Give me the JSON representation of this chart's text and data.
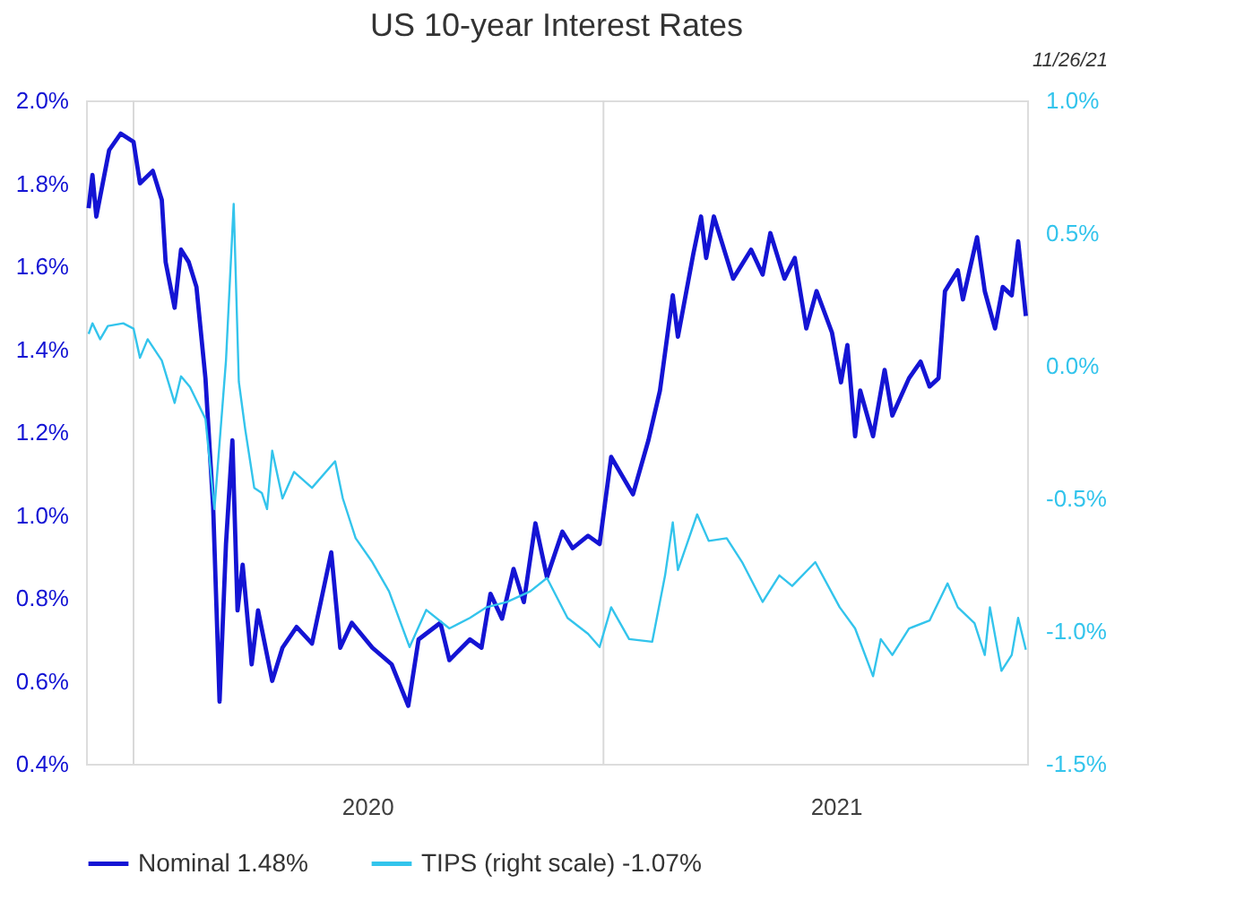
{
  "chart_data": {
    "type": "line",
    "title": "US 10-year Interest Rates",
    "annotations": [
      "11/26/21"
    ],
    "xlim": [
      "2019-11-25",
      "2021-11-27"
    ],
    "xticks": [
      {
        "value": "2020-07-01",
        "label": "2020"
      },
      {
        "value": "2021-07-01",
        "label": "2021"
      }
    ],
    "ylim": [
      0.4,
      2.0
    ],
    "yticks": [
      {
        "value": 0.4,
        "label": "0.4%"
      },
      {
        "value": 0.6,
        "label": "0.6%"
      },
      {
        "value": 0.8,
        "label": "0.8%"
      },
      {
        "value": 1.0,
        "label": "1.0%"
      },
      {
        "value": 1.2,
        "label": "1.2%"
      },
      {
        "value": 1.4,
        "label": "1.4%"
      },
      {
        "value": 1.6,
        "label": "1.6%"
      },
      {
        "value": 1.8,
        "label": "1.8%"
      },
      {
        "value": 2.0,
        "label": "2.0%"
      }
    ],
    "y2lim": [
      -1.5,
      1.0
    ],
    "y2ticks": [
      {
        "value": -1.5,
        "label": "-1.5%"
      },
      {
        "value": -1.0,
        "label": "-1.0%"
      },
      {
        "value": -0.5,
        "label": "-0.5%"
      },
      {
        "value": 0.0,
        "label": "0.0%"
      },
      {
        "value": 0.5,
        "label": "0.5%"
      },
      {
        "value": 1.0,
        "label": "1.0%"
      }
    ],
    "ref_lines": [
      {
        "axis": "x",
        "value": "2020-01-01",
        "color": "#d9d9d9"
      },
      {
        "axis": "x",
        "value": "2021-01-01",
        "color": "#d9d9d9"
      }
    ],
    "grid": false,
    "legend": "bottom",
    "line_style": "solid",
    "marker": "none",
    "series": [
      {
        "name": "Nominal 1.48%",
        "color": "#1414d4",
        "axis": "y",
        "x": [
          "2019-11-27",
          "2019-11-30",
          "2019-12-03",
          "2019-12-13",
          "2019-12-22",
          "2020-01-01",
          "2020-01-06",
          "2020-01-16",
          "2020-01-23",
          "2020-01-26",
          "2020-02-02",
          "2020-02-07",
          "2020-02-13",
          "2020-02-19",
          "2020-02-26",
          "2020-03-03",
          "2020-03-08",
          "2020-03-13",
          "2020-03-18",
          "2020-03-22",
          "2020-03-26",
          "2020-04-02",
          "2020-04-07",
          "2020-04-18",
          "2020-04-26",
          "2020-05-07",
          "2020-05-19",
          "2020-06-03",
          "2020-06-10",
          "2020-06-19",
          "2020-07-05",
          "2020-07-20",
          "2020-08-02",
          "2020-08-10",
          "2020-08-27",
          "2020-09-03",
          "2020-09-19",
          "2020-09-28",
          "2020-10-05",
          "2020-10-14",
          "2020-10-23",
          "2020-10-31",
          "2020-11-09",
          "2020-11-18",
          "2020-11-30",
          "2020-12-08",
          "2020-12-20",
          "2020-12-29",
          "2021-01-07",
          "2021-01-24",
          "2021-02-05",
          "2021-02-14",
          "2021-02-24",
          "2021-02-28",
          "2021-03-12",
          "2021-03-18",
          "2021-03-22",
          "2021-03-28",
          "2021-04-12",
          "2021-04-26",
          "2021-05-05",
          "2021-05-11",
          "2021-05-22",
          "2021-05-30",
          "2021-06-08",
          "2021-06-16",
          "2021-06-28",
          "2021-07-05",
          "2021-07-10",
          "2021-07-16",
          "2021-07-20",
          "2021-07-30",
          "2021-08-08",
          "2021-08-14",
          "2021-08-27",
          "2021-09-05",
          "2021-09-12",
          "2021-09-19",
          "2021-09-24",
          "2021-10-04",
          "2021-10-08",
          "2021-10-19",
          "2021-10-25",
          "2021-11-02",
          "2021-11-08",
          "2021-11-15",
          "2021-11-20",
          "2021-11-26"
        ],
        "values": [
          1.74,
          1.82,
          1.72,
          1.88,
          1.92,
          1.9,
          1.8,
          1.83,
          1.76,
          1.61,
          1.5,
          1.64,
          1.61,
          1.55,
          1.33,
          1.02,
          0.55,
          0.93,
          1.18,
          0.77,
          0.88,
          0.64,
          0.77,
          0.6,
          0.68,
          0.73,
          0.69,
          0.91,
          0.68,
          0.74,
          0.68,
          0.64,
          0.54,
          0.7,
          0.74,
          0.65,
          0.7,
          0.68,
          0.81,
          0.75,
          0.87,
          0.79,
          0.98,
          0.85,
          0.96,
          0.92,
          0.95,
          0.93,
          1.14,
          1.05,
          1.18,
          1.3,
          1.53,
          1.43,
          1.63,
          1.72,
          1.62,
          1.72,
          1.57,
          1.64,
          1.58,
          1.68,
          1.57,
          1.62,
          1.45,
          1.54,
          1.44,
          1.32,
          1.41,
          1.19,
          1.3,
          1.19,
          1.35,
          1.24,
          1.33,
          1.37,
          1.31,
          1.33,
          1.54,
          1.59,
          1.52,
          1.67,
          1.54,
          1.45,
          1.55,
          1.53,
          1.66,
          1.48
        ]
      },
      {
        "name": "TIPS (right scale) -1.07%",
        "color": "#33c4ec",
        "axis": "y2",
        "x": [
          "2019-11-27",
          "2019-11-30",
          "2019-12-06",
          "2019-12-12",
          "2019-12-24",
          "2020-01-01",
          "2020-01-06",
          "2020-01-12",
          "2020-01-23",
          "2020-02-02",
          "2020-02-07",
          "2020-02-14",
          "2020-02-26",
          "2020-03-04",
          "2020-03-13",
          "2020-03-19",
          "2020-03-23",
          "2020-03-28",
          "2020-04-04",
          "2020-04-10",
          "2020-04-14",
          "2020-04-18",
          "2020-04-26",
          "2020-05-05",
          "2020-05-19",
          "2020-06-06",
          "2020-06-12",
          "2020-06-22",
          "2020-07-05",
          "2020-07-18",
          "2020-08-03",
          "2020-08-16",
          "2020-09-03",
          "2020-09-19",
          "2020-10-02",
          "2020-10-18",
          "2020-11-05",
          "2020-11-18",
          "2020-12-04",
          "2020-12-20",
          "2020-12-29",
          "2021-01-07",
          "2021-01-21",
          "2021-02-08",
          "2021-02-18",
          "2021-02-24",
          "2021-02-28",
          "2021-03-15",
          "2021-03-24",
          "2021-04-07",
          "2021-04-19",
          "2021-05-05",
          "2021-05-18",
          "2021-05-28",
          "2021-06-15",
          "2021-07-04",
          "2021-07-16",
          "2021-07-30",
          "2021-08-05",
          "2021-08-14",
          "2021-08-27",
          "2021-09-12",
          "2021-09-26",
          "2021-10-04",
          "2021-10-17",
          "2021-10-25",
          "2021-10-29",
          "2021-11-07",
          "2021-11-15",
          "2021-11-20",
          "2021-11-26"
        ],
        "values": [
          0.12,
          0.16,
          0.1,
          0.15,
          0.16,
          0.14,
          0.03,
          0.1,
          0.02,
          -0.14,
          -0.04,
          -0.08,
          -0.2,
          -0.54,
          0.02,
          0.61,
          -0.06,
          -0.24,
          -0.46,
          -0.48,
          -0.54,
          -0.32,
          -0.5,
          -0.4,
          -0.46,
          -0.36,
          -0.5,
          -0.65,
          -0.74,
          -0.85,
          -1.06,
          -0.92,
          -0.99,
          -0.95,
          -0.91,
          -0.89,
          -0.85,
          -0.8,
          -0.95,
          -1.01,
          -1.06,
          -0.91,
          -1.03,
          -1.04,
          -0.79,
          -0.59,
          -0.77,
          -0.56,
          -0.66,
          -0.65,
          -0.74,
          -0.89,
          -0.79,
          -0.83,
          -0.74,
          -0.91,
          -0.99,
          -1.17,
          -1.03,
          -1.09,
          -0.99,
          -0.96,
          -0.82,
          -0.91,
          -0.97,
          -1.09,
          -0.91,
          -1.15,
          -1.09,
          -0.95,
          -1.07
        ]
      }
    ]
  }
}
